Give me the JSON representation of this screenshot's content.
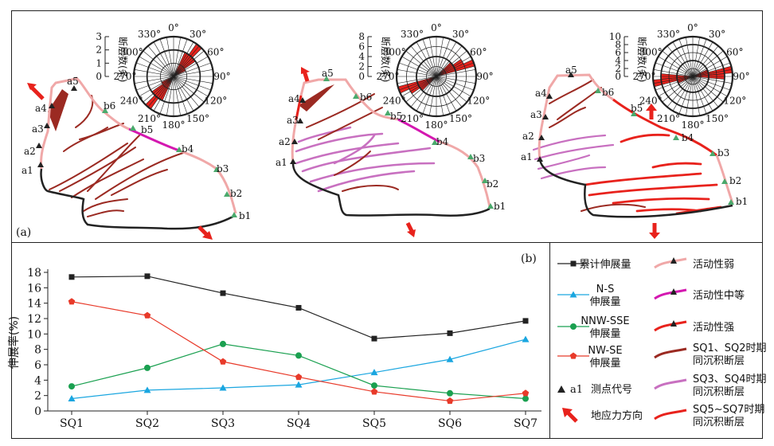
{
  "panel_a": {
    "label": "(a)",
    "rose_axis_label": "断层数(条)",
    "rose_angle_labels": [
      "0°",
      "30°",
      "60°",
      "90°",
      "120°",
      "150°",
      "180°",
      "210°",
      "240°",
      "270°",
      "300°",
      "330°"
    ],
    "roses": [
      {
        "max": 3,
        "ticks": [
          "3",
          "2",
          "1",
          "0"
        ],
        "petals": [
          {
            "angle": 30,
            "count": 2
          },
          {
            "angle": 40,
            "count": 3
          },
          {
            "angle": 50,
            "count": 2
          },
          {
            "angle": 60,
            "count": 1
          },
          {
            "angle": 210,
            "count": 2
          },
          {
            "angle": 220,
            "count": 3
          },
          {
            "angle": 230,
            "count": 2
          },
          {
            "angle": 240,
            "count": 1
          }
        ]
      },
      {
        "max": 8,
        "ticks": [
          "8",
          "6",
          "4",
          "2",
          "0"
        ],
        "petals": [
          {
            "angle": 50,
            "count": 4
          },
          {
            "angle": 60,
            "count": 6
          },
          {
            "angle": 70,
            "count": 8
          },
          {
            "angle": 230,
            "count": 4
          },
          {
            "angle": 240,
            "count": 6
          },
          {
            "angle": 250,
            "count": 8
          }
        ]
      },
      {
        "max": 10,
        "ticks": [
          "10",
          "8",
          "6",
          "4",
          "2",
          "0"
        ],
        "petals": [
          {
            "angle": 80,
            "count": 10
          },
          {
            "angle": 90,
            "count": 8
          },
          {
            "angle": 70,
            "count": 4
          },
          {
            "angle": 260,
            "count": 10
          },
          {
            "angle": 270,
            "count": 8
          },
          {
            "angle": 250,
            "count": 4
          }
        ]
      }
    ],
    "points": [
      "a1",
      "a2",
      "a3",
      "a4",
      "a5",
      "b6",
      "b5",
      "b4",
      "b3",
      "b2",
      "b1"
    ]
  },
  "panel_b": {
    "label": "(b)"
  },
  "chart_data": {
    "type": "line",
    "categories": [
      "SQ1",
      "SQ2",
      "SQ3",
      "SQ4",
      "SQ5",
      "SQ6",
      "SQ7"
    ],
    "ylabel": "伸展率(%)",
    "ylim": [
      0,
      18
    ],
    "yticks": [
      "0",
      "2",
      "4",
      "6",
      "8",
      "10",
      "12",
      "14",
      "16",
      "18"
    ],
    "series": [
      {
        "name": "累计伸展量",
        "color": "#222222",
        "marker": "square",
        "values": [
          17.4,
          17.5,
          15.3,
          13.4,
          9.4,
          10.1,
          11.7
        ]
      },
      {
        "name": "N-S 伸展量",
        "color": "#1aa6e0",
        "marker": "triangle",
        "values": [
          1.6,
          2.7,
          3.0,
          3.4,
          5.0,
          6.7,
          9.3
        ]
      },
      {
        "name": "NNW-SSE 伸展量",
        "color": "#1aa050",
        "marker": "circle",
        "values": [
          3.2,
          5.6,
          8.7,
          7.2,
          3.3,
          2.3,
          1.6
        ]
      },
      {
        "name": "NW-SE 伸展量",
        "color": "#e83a2a",
        "marker": "pentagon",
        "values": [
          14.2,
          12.4,
          6.4,
          4.4,
          2.5,
          1.3,
          2.3
        ]
      }
    ]
  },
  "legend": {
    "col1": [
      {
        "kind": "line-square",
        "color": "#222222",
        "lines": [
          "累计伸展量"
        ]
      },
      {
        "kind": "line-triangle",
        "color": "#1aa6e0",
        "lines": [
          "N-S",
          "伸展量"
        ]
      },
      {
        "kind": "line-circle",
        "color": "#1aa050",
        "lines": [
          "NNW-SSE",
          "伸展量"
        ]
      },
      {
        "kind": "line-pentagon",
        "color": "#e83a2a",
        "lines": [
          "NW-SE",
          "伸展量"
        ]
      },
      {
        "kind": "point",
        "code": "a1",
        "lines": [
          "测点代号"
        ]
      },
      {
        "kind": "arrow",
        "lines": [
          "地应力方向"
        ]
      }
    ],
    "col2": [
      {
        "color": "#f0a8a8",
        "lines": [
          "活动性弱"
        ]
      },
      {
        "color": "#d418b0",
        "lines": [
          "活动性中等"
        ]
      },
      {
        "color": "#e8221c",
        "lines": [
          "活动性强"
        ]
      },
      {
        "color": "#9b2a22",
        "lines": [
          "SQ1、SQ2时期",
          "同沉积断层"
        ]
      },
      {
        "color": "#c870c0",
        "lines": [
          "SQ3、SQ4时期",
          "同沉积断层"
        ]
      },
      {
        "color": "#e8221c",
        "lines": [
          "SQ5~SQ7时期",
          "同沉积断层"
        ]
      }
    ]
  }
}
